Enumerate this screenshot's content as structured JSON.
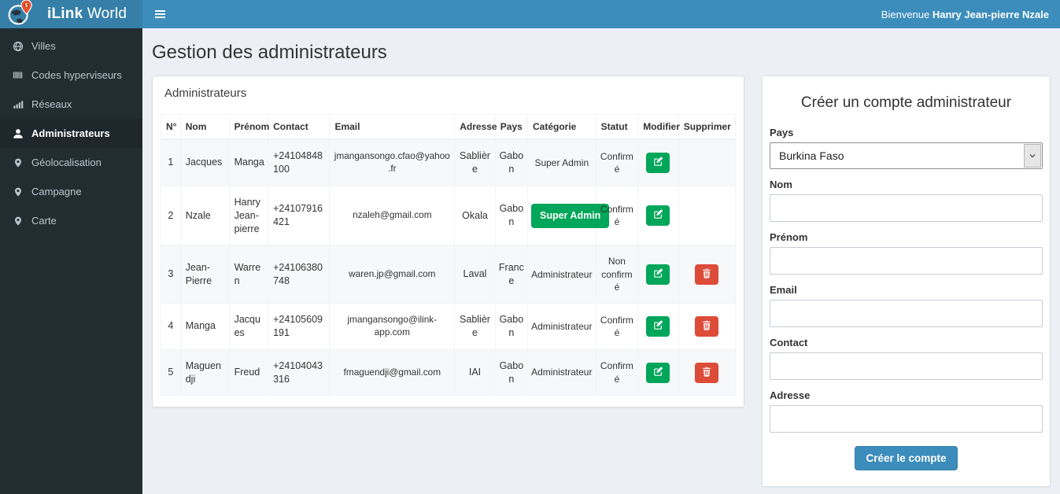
{
  "header": {
    "brand_bold": "iLink",
    "brand_light": "World",
    "welcome_prefix": "Bienvenue",
    "welcome_name": "Hanry Jean-pierre Nzale"
  },
  "sidebar": {
    "items": [
      {
        "label": "Villes",
        "icon": "globe-icon",
        "active": false
      },
      {
        "label": "Codes hyperviseurs",
        "icon": "barcode-icon",
        "active": false
      },
      {
        "label": "Réseaux",
        "icon": "signal-icon",
        "active": false
      },
      {
        "label": "Administrateurs",
        "icon": "user-icon",
        "active": true
      },
      {
        "label": "Géolocalisation",
        "icon": "marker-icon",
        "active": false
      },
      {
        "label": "Campagne",
        "icon": "marker-icon",
        "active": false
      },
      {
        "label": "Carte",
        "icon": "marker-icon",
        "active": false
      }
    ]
  },
  "main": {
    "page_title": "Gestion des administrateurs",
    "panel_title": "Administrateurs",
    "table": {
      "headers": [
        "N°",
        "Nom",
        "Prénom",
        "Contact",
        "Email",
        "Adresse",
        "Pays",
        "Catégorie",
        "Statut",
        "Modifier",
        "Supprimer"
      ],
      "rows": [
        {
          "num": "1",
          "nom": "Jacques",
          "prenom": "Manga",
          "contact": "+24104848100",
          "email": "jmangansongo.cfao@yahoo.fr",
          "adresse": "Sablière",
          "pays": "Gabon",
          "categorie": "Super Admin",
          "categorie_badge": false,
          "statut": "Confirmé",
          "can_delete": false
        },
        {
          "num": "2",
          "nom": "Nzale",
          "prenom": "Hanry Jean-pierre",
          "contact": "+24107916421",
          "email": "nzaleh@gmail.com",
          "adresse": "Okala",
          "pays": "Gabon",
          "categorie": "Super Admin",
          "categorie_badge": true,
          "statut": "Confirmé",
          "can_delete": false
        },
        {
          "num": "3",
          "nom": "Jean-Pierre",
          "prenom": "Warren",
          "contact": "+24106380748",
          "email": "waren.jp@gmail.com",
          "adresse": "Laval",
          "pays": "France",
          "categorie": "Administrateur",
          "categorie_badge": false,
          "statut": "Non confirmé",
          "can_delete": true
        },
        {
          "num": "4",
          "nom": "Manga",
          "prenom": "Jacques",
          "contact": "+24105609191",
          "email": "jmangansongo@ilink-app.com",
          "adresse": "Sablière",
          "pays": "Gabon",
          "categorie": "Administrateur",
          "categorie_badge": false,
          "statut": "Confirmé",
          "can_delete": true
        },
        {
          "num": "5",
          "nom": "Maguendji",
          "prenom": "Freud",
          "contact": "+24104043316",
          "email": "fmaguendji@gmail.com",
          "adresse": "IAI",
          "pays": "Gabon",
          "categorie": "Administrateur",
          "categorie_badge": false,
          "statut": "Confirmé",
          "can_delete": true
        }
      ]
    }
  },
  "form": {
    "title": "Créer un compte administrateur",
    "fields": [
      {
        "label": "Pays",
        "type": "select",
        "value": "Burkina Faso"
      },
      {
        "label": "Nom",
        "type": "text",
        "value": ""
      },
      {
        "label": "Prénom",
        "type": "text",
        "value": ""
      },
      {
        "label": "Email",
        "type": "text",
        "value": ""
      },
      {
        "label": "Contact",
        "type": "text",
        "value": ""
      },
      {
        "label": "Adresse",
        "type": "text",
        "value": ""
      }
    ],
    "submit_label": "Créer le compte"
  },
  "colors": {
    "navbar": "#3c8dbc",
    "logo_bg": "#367fa9",
    "sidebar": "#222d32",
    "sidebar_active": "#1e282c",
    "sidebar_text": "#b8c7ce",
    "content_bg": "#ecf0f5",
    "green": "#00a65a",
    "red": "#dd4b39",
    "primary": "#3c8dbc",
    "pin_orange": "#e8542e"
  }
}
